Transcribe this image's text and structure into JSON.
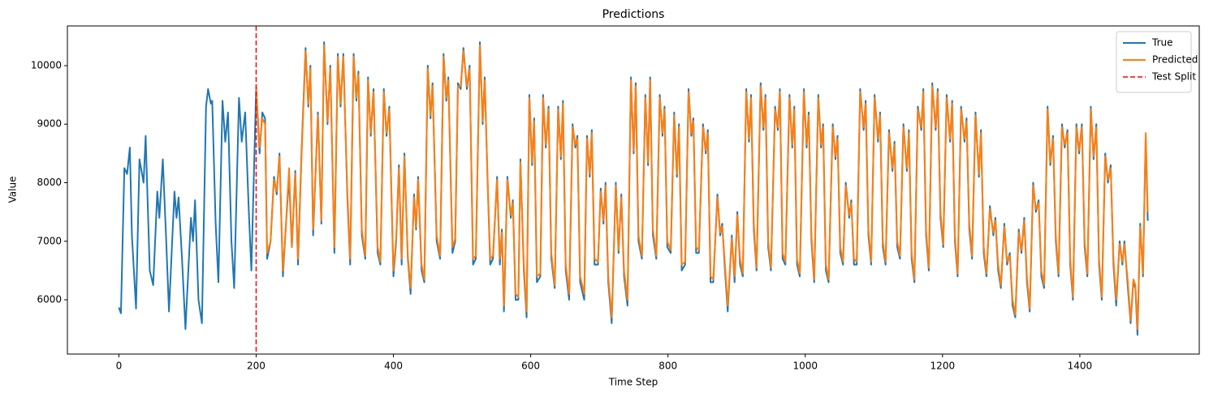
{
  "chart_data": {
    "type": "line",
    "title": "Predictions",
    "x_label": "Time Step",
    "y_label": "Value",
    "xlim": [
      -75,
      1574
    ],
    "ylim": [
      5073,
      10678
    ],
    "xticks": [
      0,
      200,
      400,
      600,
      800,
      1000,
      1200,
      1400
    ],
    "yticks": [
      6000,
      7000,
      8000,
      9000,
      10000
    ],
    "grid": false,
    "legend": "upper right",
    "x": [
      0,
      3,
      8,
      12,
      16,
      19,
      25,
      30,
      36,
      39,
      45,
      50,
      56,
      59,
      64,
      69,
      73,
      81,
      84,
      87,
      92,
      97,
      105,
      108,
      111,
      116,
      121,
      127,
      130,
      134,
      136,
      141,
      145,
      151,
      155,
      159,
      164,
      168,
      175,
      179,
      184,
      189,
      193,
      200,
      205,
      209,
      213,
      216,
      221,
      226,
      230,
      234,
      239,
      243,
      248,
      252,
      257,
      261,
      266,
      272,
      276,
      279,
      283,
      290,
      295,
      299,
      304,
      308,
      314,
      319,
      323,
      327,
      333,
      337,
      342,
      346,
      349,
      354,
      359,
      363,
      367,
      371,
      377,
      381,
      386,
      390,
      394,
      400,
      404,
      408,
      412,
      416,
      421,
      425,
      430,
      433,
      436,
      441,
      445,
      450,
      454,
      457,
      463,
      468,
      473,
      477,
      480,
      486,
      490,
      494,
      498,
      502,
      507,
      511,
      516,
      520,
      526,
      530,
      533,
      537,
      541,
      545,
      551,
      555,
      558,
      561,
      566,
      571,
      574,
      578,
      582,
      585,
      590,
      594,
      598,
      602,
      605,
      609,
      614,
      618,
      622,
      626,
      630,
      635,
      640,
      644,
      647,
      651,
      656,
      661,
      665,
      668,
      672,
      678,
      682,
      686,
      689,
      693,
      698,
      702,
      706,
      709,
      713,
      718,
      724,
      728,
      732,
      736,
      741,
      746,
      750,
      753,
      757,
      762,
      767,
      771,
      774,
      778,
      783,
      788,
      792,
      795,
      799,
      804,
      809,
      813,
      816,
      820,
      825,
      830,
      834,
      837,
      841,
      845,
      851,
      855,
      858,
      862,
      866,
      872,
      876,
      879,
      883,
      887,
      893,
      897,
      901,
      905,
      909,
      914,
      918,
      921,
      925,
      929,
      935,
      939,
      942,
      946,
      950,
      956,
      960,
      963,
      967,
      971,
      977,
      981,
      984,
      988,
      992,
      998,
      1002,
      1005,
      1009,
      1013,
      1019,
      1023,
      1026,
      1030,
      1034,
      1040,
      1044,
      1047,
      1051,
      1055,
      1059,
      1064,
      1067,
      1071,
      1075,
      1080,
      1085,
      1088,
      1092,
      1096,
      1101,
      1106,
      1109,
      1113,
      1117,
      1122,
      1127,
      1130,
      1134,
      1138,
      1143,
      1148,
      1151,
      1155,
      1159,
      1164,
      1169,
      1172,
      1176,
      1180,
      1185,
      1190,
      1193,
      1197,
      1201,
      1206,
      1211,
      1214,
      1218,
      1222,
      1227,
      1232,
      1235,
      1239,
      1243,
      1248,
      1253,
      1256,
      1260,
      1264,
      1269,
      1274,
      1277,
      1281,
      1285,
      1290,
      1294,
      1298,
      1302,
      1306,
      1311,
      1315,
      1319,
      1323,
      1327,
      1332,
      1336,
      1340,
      1344,
      1348,
      1353,
      1357,
      1361,
      1365,
      1369,
      1374,
      1378,
      1382,
      1386,
      1390,
      1395,
      1399,
      1403,
      1407,
      1411,
      1416,
      1420,
      1424,
      1428,
      1432,
      1437,
      1441,
      1445,
      1449,
      1453,
      1458,
      1462,
      1465,
      1470,
      1474,
      1478,
      1481,
      1484,
      1488,
      1492,
      1496,
      1499
    ],
    "series": [
      {
        "name": "True",
        "color": "#1f77b4",
        "values": [
          5870,
          5770,
          8250,
          8150,
          8600,
          7100,
          5850,
          8400,
          8000,
          8800,
          6500,
          6250,
          7850,
          7400,
          8400,
          7000,
          5800,
          7850,
          7400,
          7750,
          6700,
          5500,
          7400,
          7000,
          7700,
          6000,
          5600,
          9300,
          9600,
          9350,
          9400,
          7300,
          6300,
          9400,
          8700,
          9200,
          7000,
          6200,
          9450,
          8700,
          9200,
          7600,
          6500,
          9600,
          8500,
          9200,
          9100,
          6700,
          7000,
          8100,
          7800,
          8500,
          6400,
          7200,
          8100,
          6900,
          8200,
          6600,
          8500,
          10300,
          9300,
          10000,
          7100,
          9200,
          7300,
          10400,
          9000,
          10000,
          6800,
          10200,
          9300,
          10200,
          7700,
          6600,
          10200,
          9400,
          9900,
          7100,
          6700,
          9800,
          8800,
          9600,
          6800,
          6600,
          9600,
          8800,
          9300,
          6400,
          7000,
          8300,
          6600,
          8500,
          6700,
          6100,
          7800,
          7200,
          8100,
          6500,
          6300,
          10000,
          9100,
          9700,
          7000,
          6700,
          10200,
          9400,
          9800,
          6800,
          7000,
          9700,
          9600,
          10300,
          9600,
          10000,
          6600,
          6700,
          10400,
          9000,
          9800,
          8100,
          6600,
          6700,
          8100,
          6600,
          7200,
          5800,
          8100,
          7400,
          7700,
          6000,
          6000,
          8400,
          6500,
          5700,
          9500,
          8300,
          9100,
          6300,
          6400,
          9500,
          8600,
          9300,
          6700,
          6200,
          9300,
          8400,
          9400,
          6500,
          6000,
          9000,
          8600,
          8800,
          6300,
          6000,
          8800,
          8100,
          8900,
          6600,
          6600,
          7900,
          7300,
          8000,
          6300,
          5600,
          8000,
          6800,
          7800,
          6400,
          5900,
          9800,
          8500,
          9700,
          7000,
          6700,
          9500,
          8300,
          9800,
          7100,
          6700,
          9500,
          8800,
          9300,
          6900,
          6800,
          9200,
          8100,
          9000,
          6500,
          6600,
          9600,
          8800,
          9100,
          6800,
          6800,
          9000,
          8500,
          8900,
          6300,
          6300,
          7800,
          7100,
          7300,
          6500,
          5800,
          7100,
          6300,
          7500,
          6600,
          6400,
          9600,
          8700,
          9500,
          7200,
          6500,
          9700,
          8900,
          9500,
          6900,
          6500,
          9300,
          8900,
          9600,
          6700,
          6600,
          9500,
          8600,
          9300,
          6600,
          6400,
          9600,
          8600,
          9200,
          7000,
          6300,
          9500,
          8600,
          9000,
          6500,
          6300,
          9000,
          8400,
          8800,
          6800,
          6600,
          8000,
          7400,
          7700,
          6600,
          6600,
          9600,
          8900,
          9400,
          7100,
          6600,
          9500,
          8700,
          9200,
          6900,
          6600,
          8900,
          8200,
          8700,
          6900,
          6700,
          9000,
          8200,
          8900,
          6700,
          6300,
          9300,
          8900,
          9600,
          7100,
          6500,
          9700,
          8900,
          9600,
          7400,
          6900,
          9500,
          8700,
          9400,
          7000,
          6400,
          9300,
          8700,
          9100,
          7200,
          6700,
          9200,
          8100,
          8900,
          6800,
          6400,
          7600,
          7100,
          7400,
          6500,
          6200,
          7300,
          6600,
          6800,
          5900,
          5700,
          7200,
          6800,
          7400,
          6300,
          5800,
          8000,
          7500,
          7700,
          6400,
          6200,
          9300,
          8300,
          8800,
          7000,
          6400,
          9000,
          8600,
          8900,
          6600,
          6000,
          9000,
          8500,
          9000,
          6900,
          6400,
          9300,
          8400,
          9000,
          6600,
          6000,
          8500,
          8000,
          8300,
          6600,
          5900,
          7000,
          6600,
          7000,
          6200,
          5600,
          6300,
          6200,
          5400,
          7300,
          6400,
          8800,
          7350
        ]
      },
      {
        "name": "Predicted",
        "color": "#ff7f0e",
        "values": [
          null,
          null,
          null,
          null,
          null,
          null,
          null,
          null,
          null,
          null,
          null,
          null,
          null,
          null,
          null,
          null,
          null,
          null,
          null,
          null,
          null,
          null,
          null,
          null,
          null,
          null,
          null,
          null,
          null,
          null,
          null,
          null,
          null,
          null,
          null,
          null,
          null,
          null,
          null,
          null,
          null,
          null,
          null,
          9650,
          8600,
          9100,
          9000,
          6800,
          7000,
          8050,
          7850,
          8450,
          6500,
          7200,
          8250,
          6900,
          8150,
          6700,
          8400,
          10250,
          9350,
          9950,
          7200,
          9150,
          7350,
          10350,
          9050,
          9950,
          6900,
          10150,
          9350,
          10150,
          7800,
          6700,
          10150,
          9450,
          9850,
          7200,
          6750,
          9750,
          8850,
          9550,
          6900,
          6650,
          9550,
          8850,
          9250,
          6500,
          7050,
          8250,
          6700,
          8450,
          6750,
          6200,
          7750,
          7250,
          8050,
          6600,
          6350,
          9950,
          9150,
          9650,
          7100,
          6750,
          10150,
          9450,
          9750,
          6900,
          7050,
          9650,
          9650,
          10250,
          9650,
          9950,
          6700,
          6750,
          10350,
          9050,
          9750,
          8150,
          6700,
          6750,
          8050,
          6700,
          7150,
          5900,
          8050,
          7450,
          7650,
          6100,
          6050,
          8350,
          6600,
          5800,
          9450,
          8350,
          9050,
          6400,
          6450,
          9450,
          8650,
          9250,
          6800,
          6250,
          9250,
          8450,
          9350,
          6600,
          6100,
          8950,
          8650,
          8750,
          6400,
          6100,
          8750,
          8150,
          8850,
          6700,
          6650,
          7850,
          7350,
          7950,
          6400,
          5700,
          7950,
          6850,
          7750,
          6500,
          6000,
          9750,
          8550,
          9650,
          7100,
          6750,
          9450,
          8350,
          9750,
          7200,
          6750,
          9450,
          8850,
          9250,
          7000,
          6850,
          9150,
          8150,
          8950,
          6600,
          6650,
          9550,
          8850,
          9050,
          6900,
          6850,
          8950,
          8550,
          8850,
          6400,
          6350,
          7750,
          7150,
          7250,
          6600,
          5900,
          7050,
          6400,
          7450,
          6700,
          6450,
          9550,
          8750,
          9450,
          7300,
          6550,
          9650,
          8950,
          9450,
          7000,
          6550,
          9250,
          8950,
          9550,
          6800,
          6650,
          9450,
          8650,
          9250,
          6700,
          6450,
          9550,
          8650,
          9150,
          7100,
          6350,
          9450,
          8650,
          8950,
          6600,
          6350,
          8950,
          8450,
          8750,
          6900,
          6650,
          7950,
          7450,
          7650,
          6700,
          6650,
          9550,
          8950,
          9350,
          7200,
          6650,
          9450,
          8750,
          9150,
          7000,
          6650,
          8850,
          8250,
          8650,
          7000,
          6750,
          8950,
          8250,
          8850,
          6800,
          6350,
          9250,
          8950,
          9550,
          7200,
          6550,
          9650,
          8950,
          9550,
          7500,
          6950,
          9450,
          8750,
          9350,
          7100,
          6450,
          9250,
          8750,
          9050,
          7300,
          6750,
          9150,
          8150,
          8850,
          6900,
          6450,
          7550,
          7150,
          7350,
          6600,
          6250,
          7250,
          6650,
          6750,
          6000,
          5750,
          7150,
          6850,
          7350,
          6400,
          5850,
          7950,
          7550,
          7650,
          6500,
          6250,
          9250,
          8350,
          8750,
          7100,
          6450,
          8950,
          8650,
          8850,
          6700,
          6050,
          8950,
          8550,
          8950,
          7000,
          6450,
          9250,
          8450,
          8950,
          6700,
          6050,
          8450,
          8050,
          8250,
          6700,
          6000,
          6950,
          6650,
          6950,
          6300,
          5650,
          6350,
          6250,
          5500,
          7250,
          6450,
          8850,
          7500
        ]
      }
    ],
    "vlines": [
      {
        "x": 200,
        "name": "Test Split",
        "color": "#ff0000"
      }
    ]
  }
}
